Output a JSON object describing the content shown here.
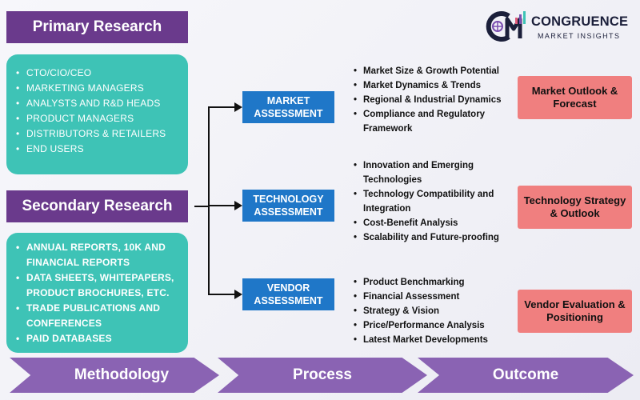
{
  "primary": {
    "title": "Primary Research",
    "items": [
      "CTO/CIO/CEO",
      "MARKETING MANAGERS",
      "ANALYSTS AND R&D HEADS",
      "PRODUCT MANAGERS",
      "DISTRIBUTORS & RETAILERS",
      "END USERS"
    ]
  },
  "secondary": {
    "title": "Secondary Research",
    "items": [
      "ANNUAL REPORTS, 10K AND FINANCIAL REPORTS",
      "DATA SHEETS, WHITEPAPERS, PRODUCT BROCHURES, ETC.",
      "TRADE PUBLICATIONS AND CONFERENCES",
      "PAID DATABASES"
    ]
  },
  "logo": {
    "name": "CONGRUENCE",
    "tagline": "MARKET INSIGHTS"
  },
  "assessments": [
    {
      "label": "MARKET ASSESSMENT",
      "bullets": [
        "Market Size & Growth Potential",
        "Market Dynamics & Trends",
        "Regional & Industrial Dynamics",
        "Compliance and Regulatory Framework"
      ],
      "outcome": "Market Outlook & Forecast"
    },
    {
      "label": "TECHNOLOGY ASSESSMENT",
      "bullets": [
        "Innovation and Emerging Technologies",
        "Technology Compatibility and Integration",
        "Cost-Benefit Analysis",
        "Scalability and Future-proofing"
      ],
      "outcome": "Technology Strategy & Outlook"
    },
    {
      "label": "VENDOR ASSESSMENT",
      "bullets": [
        "Product Benchmarking",
        "Financial Assessment",
        "Strategy & Vision",
        "Price/Performance Analysis",
        "Latest Market Developments"
      ],
      "outcome": "Vendor Evaluation & Positioning"
    }
  ],
  "footer": {
    "steps": [
      "Methodology",
      "Process",
      "Outcome"
    ]
  },
  "colors": {
    "purple_tag": "#6a3a8c",
    "teal_panel": "#3ec3b6",
    "blue_box": "#1f77c8",
    "outcome_red": "#f07f7f",
    "footer_purple": "#8a63b3"
  }
}
